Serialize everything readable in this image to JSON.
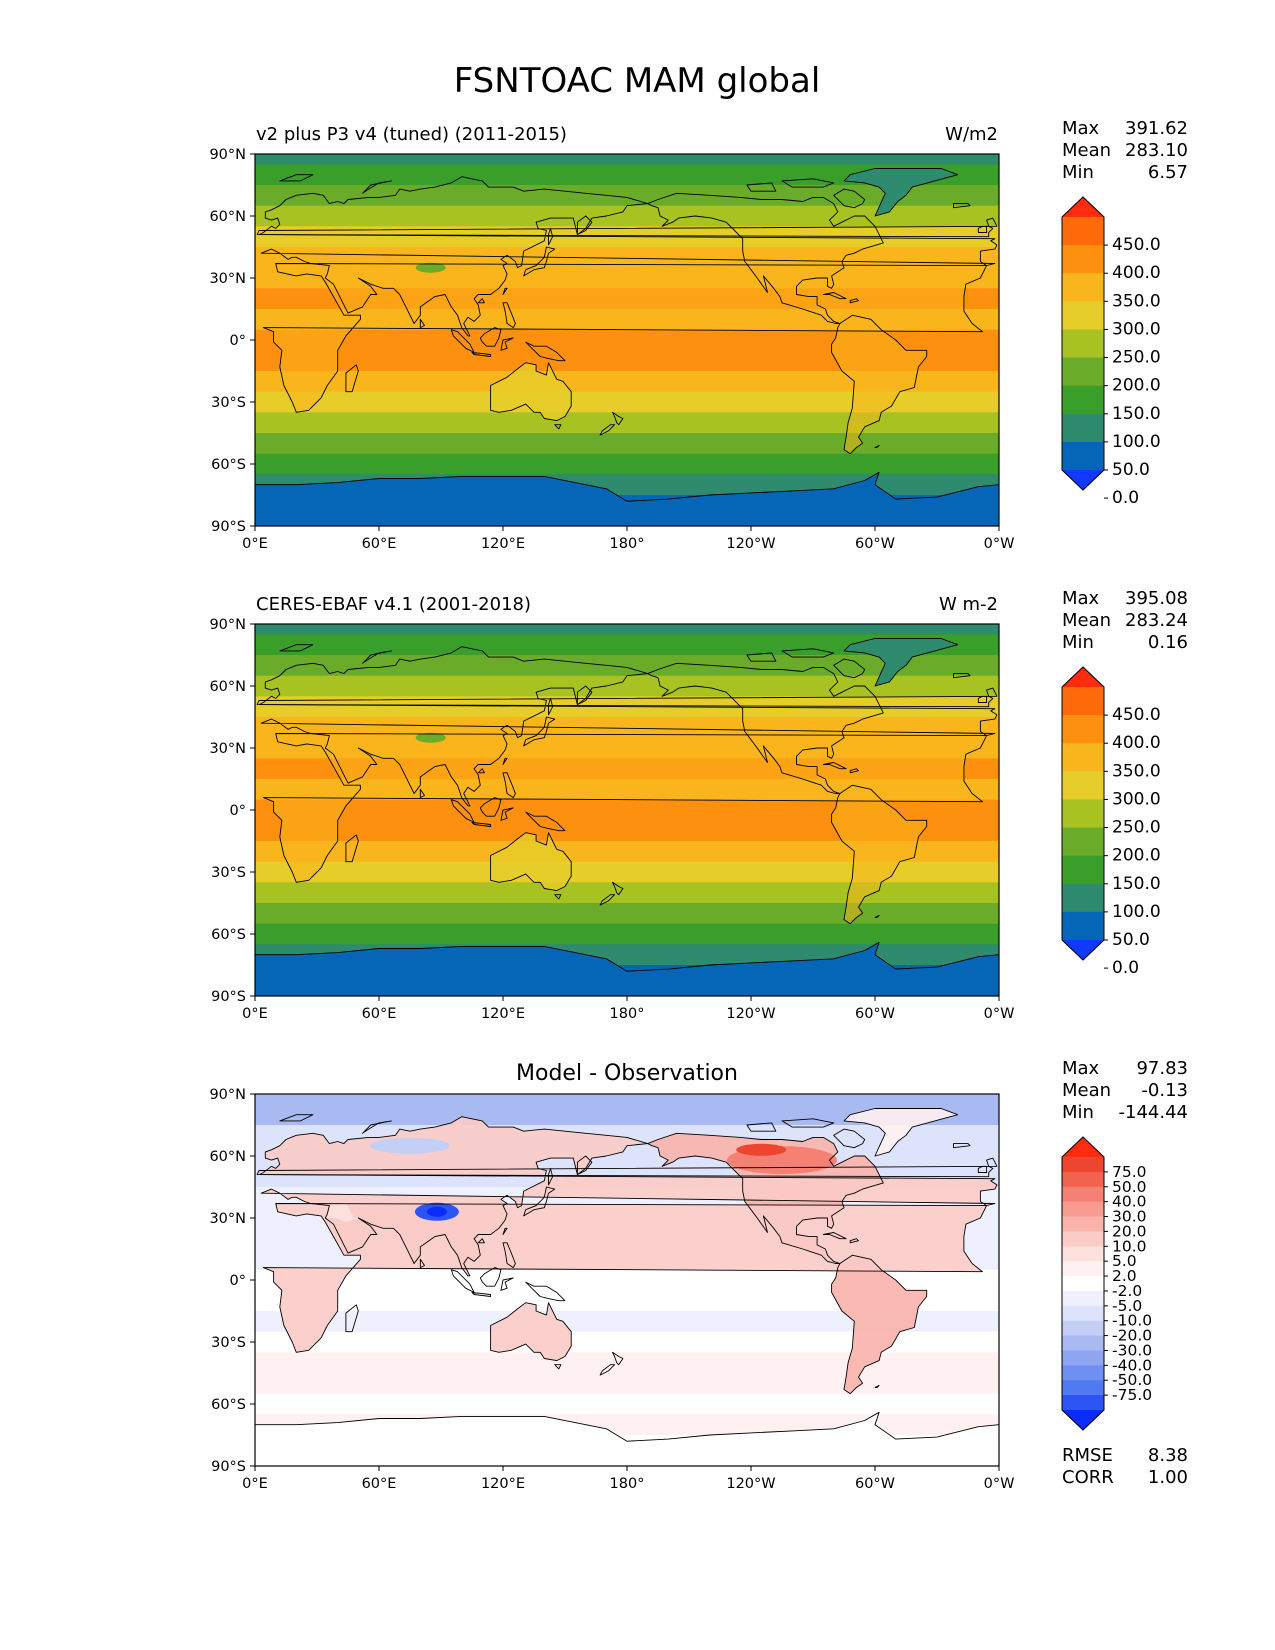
{
  "figure_title": "FSNTOAC MAM global",
  "colors": {
    "absolute_levels": [
      "#1139ff",
      "#0565b6",
      "#2e8b6e",
      "#3a9e2a",
      "#6aab29",
      "#a8c221",
      "#e6cd29",
      "#f9b51c",
      "#fe900f",
      "#fe6a09",
      "#ff2c10"
    ],
    "diff_levels": [
      "#0a2cff",
      "#2d55f5",
      "#5179f2",
      "#6f8ff3",
      "#8ea5f2",
      "#a9b9f2",
      "#c4cff5",
      "#dde3fa",
      "#eef1fd",
      "#ffffff",
      "#fff1f1",
      "#fde1df",
      "#fbcbc6",
      "#f9b3ab",
      "#f79a90",
      "#f58074",
      "#f1624f",
      "#ee4530",
      "#ff2c10"
    ],
    "ocean_diff": "#c4cff5",
    "land_outline": "#000000"
  },
  "chart_data": [
    {
      "type": "heatmap",
      "title": "v2 plus P3 v4 (tuned) (2011-2015)",
      "units": "W/m2",
      "stats": [
        {
          "label": "Max",
          "value": "391.62"
        },
        {
          "label": "Mean",
          "value": "283.10"
        },
        {
          "label": "Min",
          "value": "6.57"
        }
      ],
      "xticks": [
        "0°E",
        "60°E",
        "120°E",
        "180°",
        "120°W",
        "60°W",
        "0°W"
      ],
      "yticks": [
        "90°N",
        "60°N",
        "30°N",
        "0°",
        "30°S",
        "60°S",
        "90°S"
      ],
      "colorbar_ticks": [
        "450.0",
        "400.0",
        "350.0",
        "300.0",
        "250.0",
        "200.0",
        "150.0",
        "100.0",
        "50.0",
        "0.0"
      ],
      "zonal_mean_by_latitude": [
        {
          "lat": 90,
          "v": 75
        },
        {
          "lat": 80,
          "v": 130
        },
        {
          "lat": 70,
          "v": 180
        },
        {
          "lat": 60,
          "v": 230
        },
        {
          "lat": 50,
          "v": 270
        },
        {
          "lat": 40,
          "v": 310
        },
        {
          "lat": 30,
          "v": 330
        },
        {
          "lat": 20,
          "v": 350
        },
        {
          "lat": 10,
          "v": 345
        },
        {
          "lat": 0,
          "v": 350
        },
        {
          "lat": -10,
          "v": 355
        },
        {
          "lat": -20,
          "v": 320
        },
        {
          "lat": -30,
          "v": 280
        },
        {
          "lat": -40,
          "v": 230
        },
        {
          "lat": -50,
          "v": 165
        },
        {
          "lat": -60,
          "v": 120
        },
        {
          "lat": -70,
          "v": 60
        },
        {
          "lat": -80,
          "v": 35
        },
        {
          "lat": -90,
          "v": 30
        }
      ]
    },
    {
      "type": "heatmap",
      "title": "CERES-EBAF v4.1 (2001-2018)",
      "units": "W m-2",
      "stats": [
        {
          "label": "Max",
          "value": "395.08"
        },
        {
          "label": "Mean",
          "value": "283.24"
        },
        {
          "label": "Min",
          "value": "0.16"
        }
      ],
      "xticks": [
        "0°E",
        "60°E",
        "120°E",
        "180°",
        "120°W",
        "60°W",
        "0°W"
      ],
      "yticks": [
        "90°N",
        "60°N",
        "30°N",
        "0°",
        "30°S",
        "60°S",
        "90°S"
      ],
      "colorbar_ticks": [
        "450.0",
        "400.0",
        "350.0",
        "300.0",
        "250.0",
        "200.0",
        "150.0",
        "100.0",
        "50.0",
        "0.0"
      ],
      "zonal_mean_by_latitude": [
        {
          "lat": 90,
          "v": 75
        },
        {
          "lat": 80,
          "v": 130
        },
        {
          "lat": 70,
          "v": 180
        },
        {
          "lat": 60,
          "v": 230
        },
        {
          "lat": 50,
          "v": 270
        },
        {
          "lat": 40,
          "v": 310
        },
        {
          "lat": 30,
          "v": 330
        },
        {
          "lat": 20,
          "v": 350
        },
        {
          "lat": 10,
          "v": 345
        },
        {
          "lat": 0,
          "v": 350
        },
        {
          "lat": -10,
          "v": 355
        },
        {
          "lat": -20,
          "v": 320
        },
        {
          "lat": -30,
          "v": 280
        },
        {
          "lat": -40,
          "v": 230
        },
        {
          "lat": -50,
          "v": 165
        },
        {
          "lat": -60,
          "v": 120
        },
        {
          "lat": -70,
          "v": 60
        },
        {
          "lat": -80,
          "v": 35
        },
        {
          "lat": -90,
          "v": 30
        }
      ]
    },
    {
      "type": "heatmap",
      "title": "Model - Observation",
      "units": "",
      "stats": [
        {
          "label": "Max",
          "value": "97.83"
        },
        {
          "label": "Mean",
          "value": "-0.13"
        },
        {
          "label": "Min",
          "value": "-144.44"
        }
      ],
      "footer_stats": [
        {
          "label": "RMSE",
          "value": "8.38"
        },
        {
          "label": "CORR",
          "value": "1.00"
        }
      ],
      "xticks": [
        "0°E",
        "60°E",
        "120°E",
        "180°",
        "120°W",
        "60°W",
        "0°W"
      ],
      "yticks": [
        "90°N",
        "60°N",
        "30°N",
        "0°",
        "30°S",
        "60°S",
        "90°S"
      ],
      "colorbar_ticks": [
        "75.0",
        "50.0",
        "40.0",
        "30.0",
        "20.0",
        "10.0",
        "5.0",
        "2.0",
        "-2.0",
        "-5.0",
        "-10.0",
        "-20.0",
        "-30.0",
        "-40.0",
        "-50.0",
        "-75.0"
      ],
      "zonal_mean_by_latitude": [
        {
          "lat": 90,
          "v": -20
        },
        {
          "lat": 80,
          "v": -20
        },
        {
          "lat": 70,
          "v": -5
        },
        {
          "lat": 60,
          "v": -3
        },
        {
          "lat": 50,
          "v": -3
        },
        {
          "lat": 40,
          "v": -2
        },
        {
          "lat": 30,
          "v": -2
        },
        {
          "lat": 20,
          "v": 0
        },
        {
          "lat": 10,
          "v": 0
        },
        {
          "lat": 0,
          "v": 3
        },
        {
          "lat": -10,
          "v": 3
        },
        {
          "lat": -20,
          "v": 1
        },
        {
          "lat": -30,
          "v": 2
        },
        {
          "lat": -40,
          "v": 5
        },
        {
          "lat": -50,
          "v": 5
        },
        {
          "lat": -60,
          "v": 3
        },
        {
          "lat": -70,
          "v": 5
        },
        {
          "lat": -80,
          "v": 2
        },
        {
          "lat": -90,
          "v": 3
        }
      ]
    }
  ]
}
